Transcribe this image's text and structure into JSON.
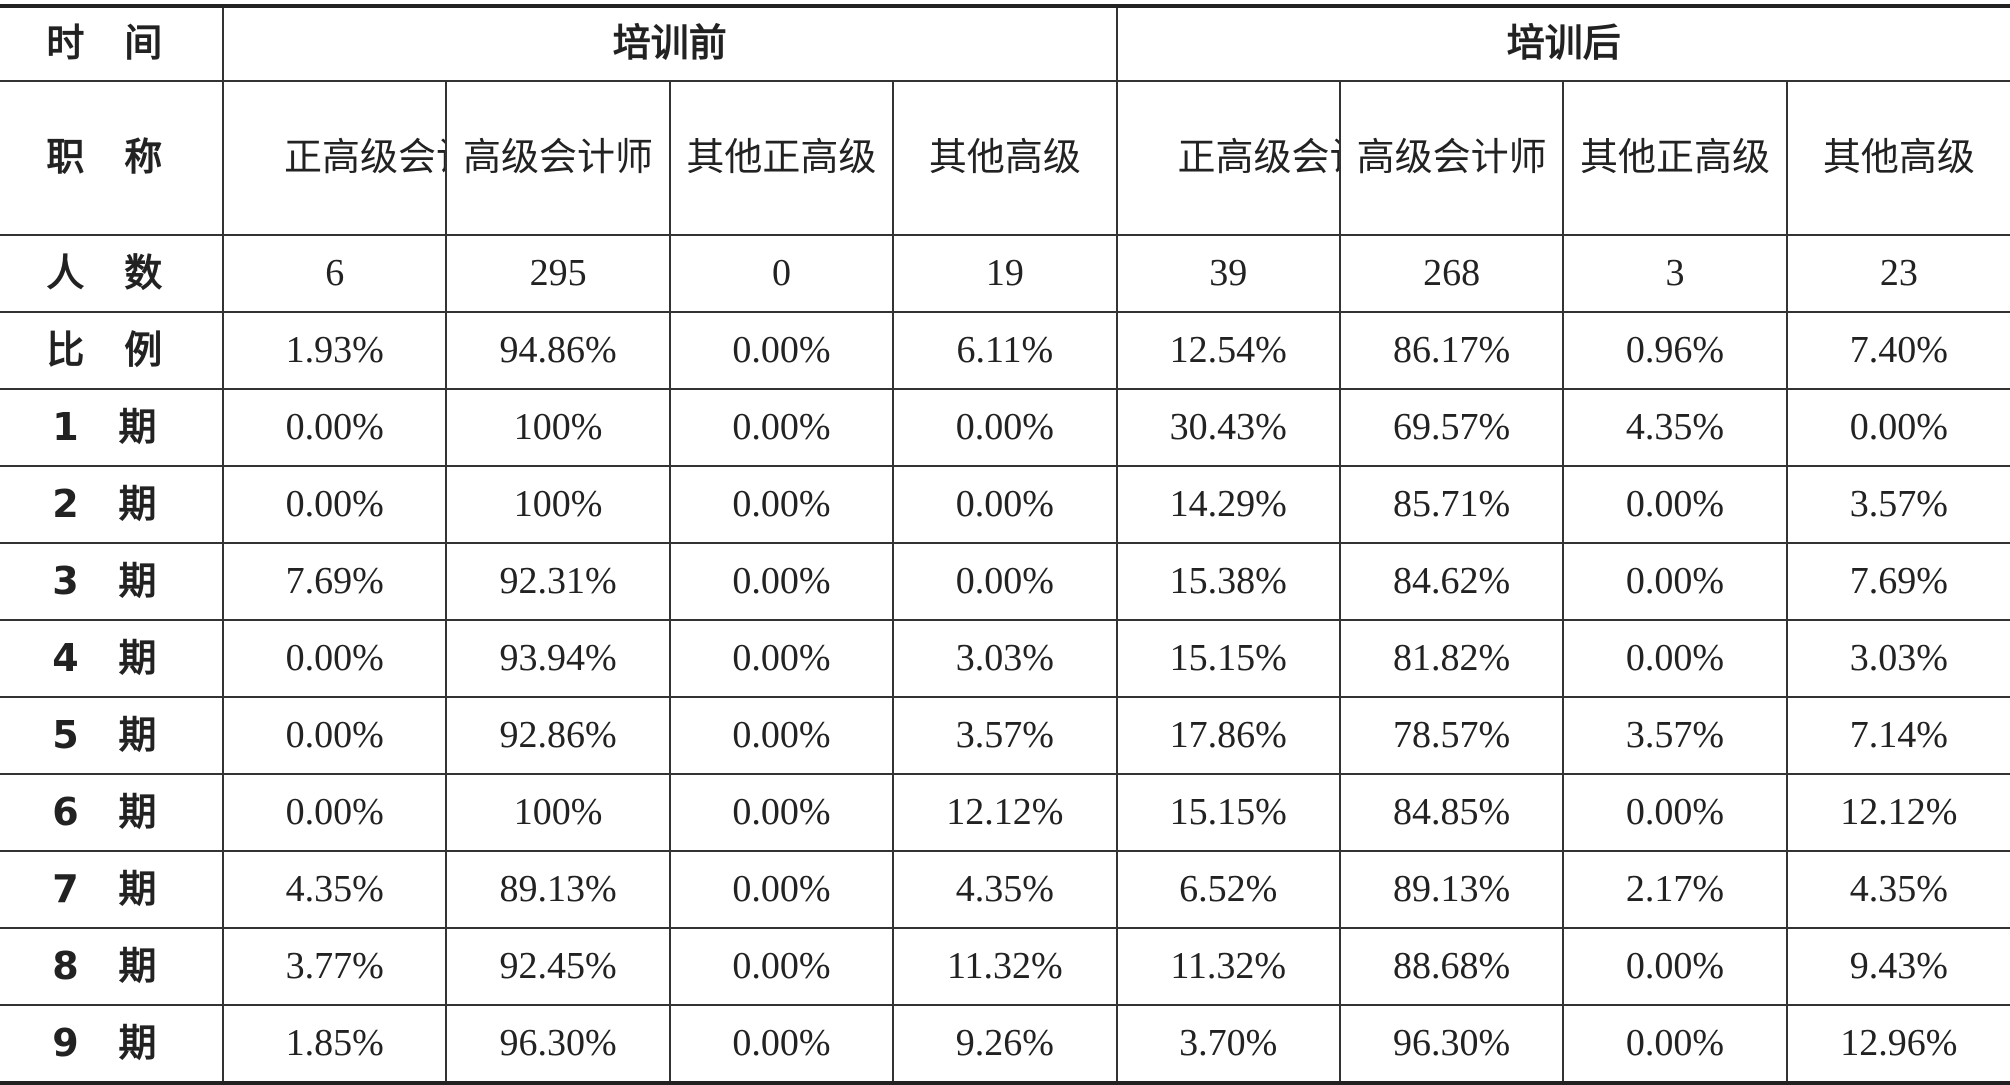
{
  "header": {
    "row_time_label": "时 间",
    "group_before": "培训前",
    "group_after": "培训后",
    "row_title_label": "职 称"
  },
  "categories": [
    "正高级会计师",
    "高级会计师",
    "其他正高级",
    "其他高级",
    "正高级会计师",
    "高级会计师",
    "其他正高级",
    "其他高级"
  ],
  "rows": [
    {
      "label": "人 数",
      "values": [
        "6",
        "295",
        "0",
        "19",
        "39",
        "268",
        "3",
        "23"
      ]
    },
    {
      "label": "比 例",
      "values": [
        "1.93%",
        "94.86%",
        "0.00%",
        "6.11%",
        "12.54%",
        "86.17%",
        "0.96%",
        "7.40%"
      ]
    },
    {
      "label": "1 期",
      "values": [
        "0.00%",
        "100%",
        "0.00%",
        "0.00%",
        "30.43%",
        "69.57%",
        "4.35%",
        "0.00%"
      ]
    },
    {
      "label": "2 期",
      "values": [
        "0.00%",
        "100%",
        "0.00%",
        "0.00%",
        "14.29%",
        "85.71%",
        "0.00%",
        "3.57%"
      ]
    },
    {
      "label": "3 期",
      "values": [
        "7.69%",
        "92.31%",
        "0.00%",
        "0.00%",
        "15.38%",
        "84.62%",
        "0.00%",
        "7.69%"
      ]
    },
    {
      "label": "4 期",
      "values": [
        "0.00%",
        "93.94%",
        "0.00%",
        "3.03%",
        "15.15%",
        "81.82%",
        "0.00%",
        "3.03%"
      ]
    },
    {
      "label": "5 期",
      "values": [
        "0.00%",
        "92.86%",
        "0.00%",
        "3.57%",
        "17.86%",
        "78.57%",
        "3.57%",
        "7.14%"
      ]
    },
    {
      "label": "6 期",
      "values": [
        "0.00%",
        "100%",
        "0.00%",
        "12.12%",
        "15.15%",
        "84.85%",
        "0.00%",
        "12.12%"
      ]
    },
    {
      "label": "7 期",
      "values": [
        "4.35%",
        "89.13%",
        "0.00%",
        "4.35%",
        "6.52%",
        "89.13%",
        "2.17%",
        "4.35%"
      ]
    },
    {
      "label": "8 期",
      "values": [
        "3.77%",
        "92.45%",
        "0.00%",
        "11.32%",
        "11.32%",
        "88.68%",
        "0.00%",
        "9.43%"
      ]
    },
    {
      "label": "9 期",
      "values": [
        "1.85%",
        "96.30%",
        "0.00%",
        "9.26%",
        "3.70%",
        "96.30%",
        "0.00%",
        "12.96%"
      ]
    }
  ]
}
